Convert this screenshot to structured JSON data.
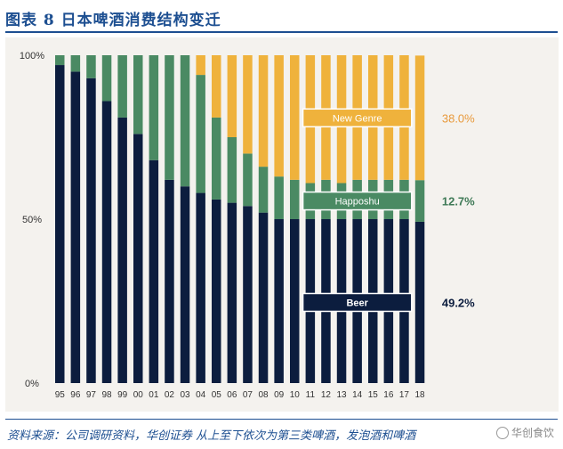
{
  "header": {
    "title": "图表 8   日本啤酒消费结构变迁"
  },
  "footer": {
    "source": "资料来源：公司调研资料，华创证券  从上至下依次为第三类啤酒，发泡酒和啤酒",
    "watermark": "华创食饮"
  },
  "colors": {
    "beer": "#0c1d3e",
    "happoshu": "#4a8a63",
    "new_genre": "#efb23c",
    "background": "#f4f2ee"
  },
  "chart_data": {
    "type": "bar",
    "stacked": true,
    "categories": [
      "95",
      "96",
      "97",
      "98",
      "99",
      "00",
      "01",
      "02",
      "03",
      "04",
      "05",
      "06",
      "07",
      "08",
      "09",
      "10",
      "11",
      "12",
      "13",
      "14",
      "15",
      "16",
      "17",
      "18"
    ],
    "series": [
      {
        "name": "Beer",
        "values": [
          97,
          95,
          93,
          86,
          81,
          76,
          68,
          62,
          60,
          58,
          56,
          55,
          54,
          52,
          50,
          50,
          50,
          50,
          50,
          50,
          50,
          50,
          50,
          49.2
        ]
      },
      {
        "name": "Happoshu",
        "values": [
          3,
          5,
          7,
          14,
          19,
          24,
          32,
          38,
          40,
          36,
          25,
          20,
          16,
          14,
          13,
          12,
          11,
          12,
          11,
          12,
          12,
          12,
          12,
          12.7
        ]
      },
      {
        "name": "New Genre",
        "values": [
          0,
          0,
          0,
          0,
          0,
          0,
          0,
          0,
          0,
          6,
          19,
          25,
          30,
          34,
          37,
          38,
          39,
          38,
          39,
          38,
          38,
          38,
          38,
          38.0
        ]
      }
    ],
    "annotations": [
      {
        "series": "New Genre",
        "label": "38.0%"
      },
      {
        "series": "Happoshu",
        "label": "12.7%"
      },
      {
        "series": "Beer",
        "label": "49.2%"
      }
    ],
    "y_ticks": [
      "0%",
      "50%",
      "100%"
    ],
    "ylim": [
      0,
      100
    ],
    "grid": false
  }
}
